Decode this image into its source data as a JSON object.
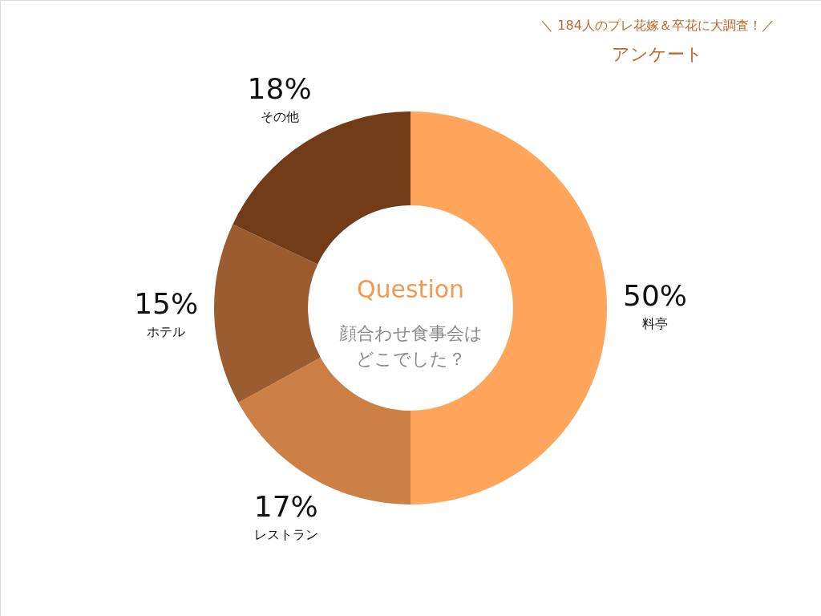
{
  "chart_data": {
    "type": "donut",
    "title": "＼ 184人のプレ花嫁＆卒花に大調査！／",
    "subtitle": "アンケート",
    "categories": [
      "料亭",
      "レストラン",
      "ホテル",
      "その他"
    ],
    "values": [
      50,
      17,
      15,
      18
    ],
    "colors": [
      "#ffa65c",
      "#cd8046",
      "#9b5c2f",
      "#733c18"
    ],
    "value_labels": [
      "50%",
      "17%",
      "15%",
      "18%"
    ],
    "annotations": [
      "Question",
      "顔合わせ食事会は",
      "どこでした？"
    ]
  }
}
